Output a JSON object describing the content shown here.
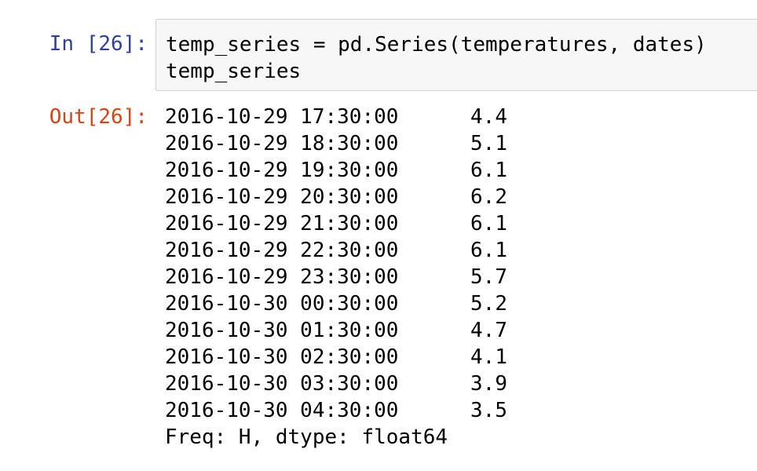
{
  "input_cell": {
    "prompt": "In [26]:",
    "code_lines": [
      "temp_series = pd.Series(temperatures, dates)",
      "temp_series"
    ]
  },
  "output_cell": {
    "prompt": "Out[26]:",
    "rows": [
      {
        "index": "2016-10-29 17:30:00",
        "value": "4.4"
      },
      {
        "index": "2016-10-29 18:30:00",
        "value": "5.1"
      },
      {
        "index": "2016-10-29 19:30:00",
        "value": "6.1"
      },
      {
        "index": "2016-10-29 20:30:00",
        "value": "6.2"
      },
      {
        "index": "2016-10-29 21:30:00",
        "value": "6.1"
      },
      {
        "index": "2016-10-29 22:30:00",
        "value": "6.1"
      },
      {
        "index": "2016-10-29 23:30:00",
        "value": "5.7"
      },
      {
        "index": "2016-10-30 00:30:00",
        "value": "5.2"
      },
      {
        "index": "2016-10-30 01:30:00",
        "value": "4.7"
      },
      {
        "index": "2016-10-30 02:30:00",
        "value": "4.1"
      },
      {
        "index": "2016-10-30 03:30:00",
        "value": "3.9"
      },
      {
        "index": "2016-10-30 04:30:00",
        "value": "3.5"
      }
    ],
    "footer": "Freq: H, dtype: float64"
  },
  "colors": {
    "in_prompt": "#303f9f",
    "out_prompt": "#d84315",
    "input_background": "#f7f7f7",
    "input_border": "#cfcfcf"
  }
}
